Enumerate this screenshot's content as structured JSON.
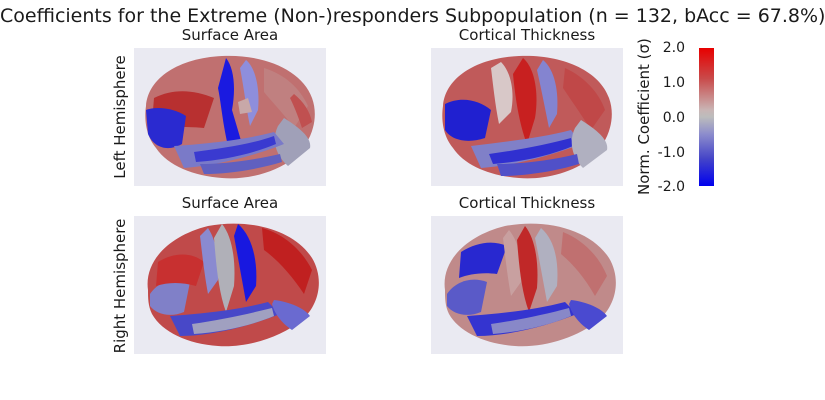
{
  "chart_data": {
    "type": "heatmap",
    "title": "Coefficients for the Extreme (Non-)responders Subpopulation (n = 132, bAcc = 67.8%)",
    "rows": [
      "Left Hemisphere",
      "Right Hemisphere"
    ],
    "columns": [
      "Surface Area",
      "Cortical Thickness"
    ],
    "panels": [
      {
        "row": "Left Hemisphere",
        "title": "Surface Area"
      },
      {
        "row": "Left Hemisphere",
        "title": "Cortical Thickness"
      },
      {
        "row": "Right Hemisphere",
        "title": "Surface Area"
      },
      {
        "row": "Right Hemisphere",
        "title": "Cortical Thickness"
      }
    ],
    "colorbar": {
      "label": "Norm. Coefficient (σ)",
      "range": [
        -2.0,
        2.0
      ],
      "ticks": [
        "2.0",
        "1.0",
        "0.0",
        "-1.0",
        "-2.0"
      ],
      "colors": {
        "max": "#e80000",
        "mid": "#bcbcbc",
        "min": "#0000ee"
      }
    }
  }
}
